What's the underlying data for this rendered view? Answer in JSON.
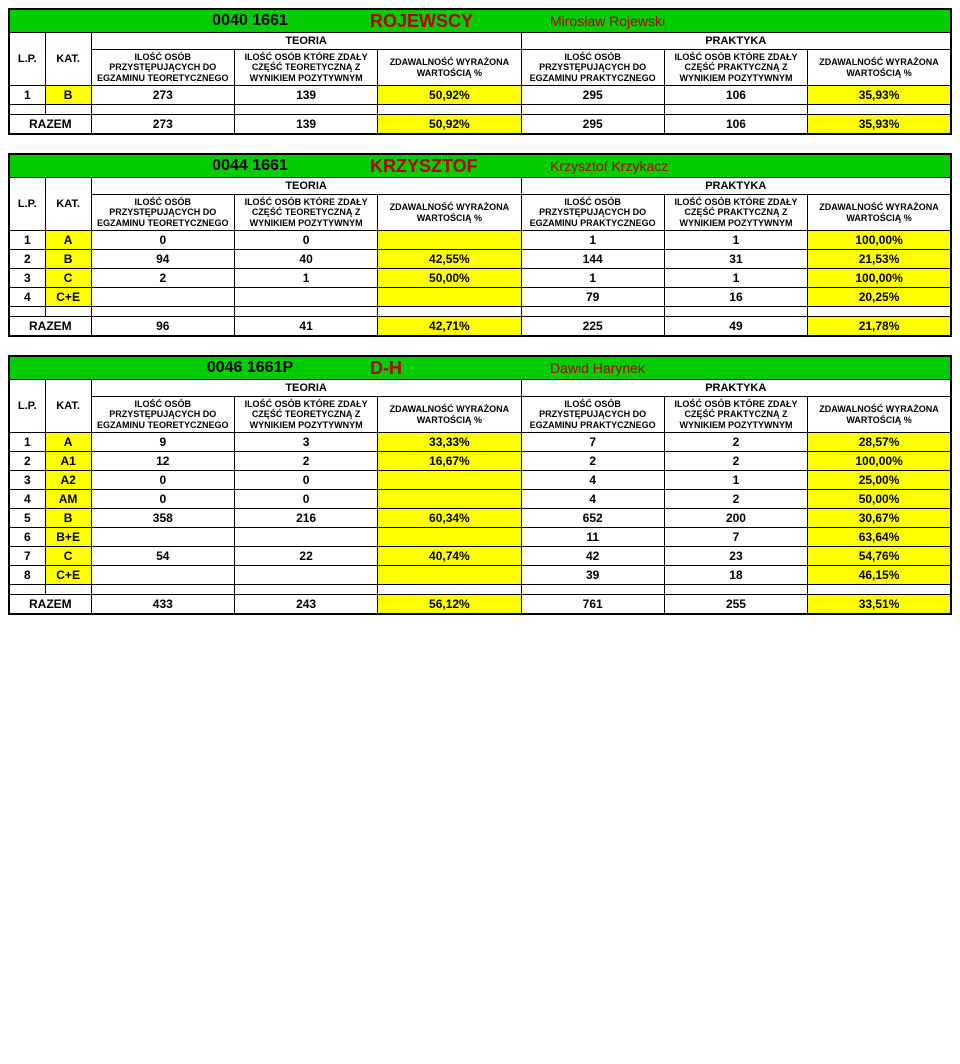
{
  "labels": {
    "teoria": "TEORIA",
    "praktyka": "PRAKTYKA",
    "lp": "L.P.",
    "kat": "KAT.",
    "col_teo_count": "ILOŚĆ OSÓB PRZYSTĘPUJĄCYCH DO EGZAMINU TEORETYCZNEGO",
    "col_teo_pass": "ILOŚĆ OSÓB KTÓRE ZDAŁY CZĘŚĆ TEORETYCZNĄ Z WYNIKIEM POZYTYWNYM",
    "col_pass_pct": "ZDAWALNOŚĆ WYRAŻONA WARTOŚCIĄ %",
    "col_pra_count": "ILOŚĆ OSÓB PRZYSTĘPUJĄCYCH DO EGZAMINU PRAKTYCZNEGO",
    "col_pra_pass": "ILOŚĆ OSÓB KTÓRE ZDAŁY CZĘŚĆ PRAKTYCZNĄ Z WYNIKIEM POZYTYWNYM",
    "razem": "RAZEM"
  },
  "colors": {
    "title_bg": "#00cc00",
    "title_text": "#b30000",
    "yellow": "#ffff00",
    "border": "#000000",
    "background": "#ffffff"
  },
  "typography": {
    "base_font": "Arial, sans-serif",
    "base_size_pt": 9,
    "title_code_size_pt": 12,
    "title_big_size_pt": 14,
    "header_sub_size_pt": 7
  },
  "blocks": [
    {
      "code": "0040 1661",
      "big": "ROJEWSCY",
      "owner": "Mirosław Rojewski",
      "rows": [
        {
          "lp": "1",
          "kat": "B",
          "teo_n": "273",
          "teo_p": "139",
          "teo_pct": "50,92%",
          "pra_n": "295",
          "pra_p": "106",
          "pra_pct": "35,93%"
        }
      ],
      "totals": {
        "teo_n": "273",
        "teo_p": "139",
        "teo_pct": "50,92%",
        "pra_n": "295",
        "pra_p": "106",
        "pra_pct": "35,93%"
      }
    },
    {
      "code": "0044 1661",
      "big": "KRZYSZTOF",
      "owner": "Krzysztof Krzykacz",
      "rows": [
        {
          "lp": "1",
          "kat": "A",
          "teo_n": "0",
          "teo_p": "0",
          "teo_pct": "",
          "pra_n": "1",
          "pra_p": "1",
          "pra_pct": "100,00%"
        },
        {
          "lp": "2",
          "kat": "B",
          "teo_n": "94",
          "teo_p": "40",
          "teo_pct": "42,55%",
          "pra_n": "144",
          "pra_p": "31",
          "pra_pct": "21,53%"
        },
        {
          "lp": "3",
          "kat": "C",
          "teo_n": "2",
          "teo_p": "1",
          "teo_pct": "50,00%",
          "pra_n": "1",
          "pra_p": "1",
          "pra_pct": "100,00%"
        },
        {
          "lp": "4",
          "kat": "C+E",
          "teo_n": "",
          "teo_p": "",
          "teo_pct": "",
          "pra_n": "79",
          "pra_p": "16",
          "pra_pct": "20,25%"
        }
      ],
      "totals": {
        "teo_n": "96",
        "teo_p": "41",
        "teo_pct": "42,71%",
        "pra_n": "225",
        "pra_p": "49",
        "pra_pct": "21,78%"
      }
    },
    {
      "code": "0046 1661P",
      "big": "D-H",
      "owner": "Dawid Harynek",
      "rows": [
        {
          "lp": "1",
          "kat": "A",
          "teo_n": "9",
          "teo_p": "3",
          "teo_pct": "33,33%",
          "pra_n": "7",
          "pra_p": "2",
          "pra_pct": "28,57%"
        },
        {
          "lp": "2",
          "kat": "A1",
          "teo_n": "12",
          "teo_p": "2",
          "teo_pct": "16,67%",
          "pra_n": "2",
          "pra_p": "2",
          "pra_pct": "100,00%"
        },
        {
          "lp": "3",
          "kat": "A2",
          "teo_n": "0",
          "teo_p": "0",
          "teo_pct": "",
          "pra_n": "4",
          "pra_p": "1",
          "pra_pct": "25,00%"
        },
        {
          "lp": "4",
          "kat": "AM",
          "teo_n": "0",
          "teo_p": "0",
          "teo_pct": "",
          "pra_n": "4",
          "pra_p": "2",
          "pra_pct": "50,00%"
        },
        {
          "lp": "5",
          "kat": "B",
          "teo_n": "358",
          "teo_p": "216",
          "teo_pct": "60,34%",
          "pra_n": "652",
          "pra_p": "200",
          "pra_pct": "30,67%"
        },
        {
          "lp": "6",
          "kat": "B+E",
          "teo_n": "",
          "teo_p": "",
          "teo_pct": "",
          "pra_n": "11",
          "pra_p": "7",
          "pra_pct": "63,64%"
        },
        {
          "lp": "7",
          "kat": "C",
          "teo_n": "54",
          "teo_p": "22",
          "teo_pct": "40,74%",
          "pra_n": "42",
          "pra_p": "23",
          "pra_pct": "54,76%"
        },
        {
          "lp": "8",
          "kat": "C+E",
          "teo_n": "",
          "teo_p": "",
          "teo_pct": "",
          "pra_n": "39",
          "pra_p": "18",
          "pra_pct": "46,15%"
        }
      ],
      "totals": {
        "teo_n": "433",
        "teo_p": "243",
        "teo_pct": "56,12%",
        "pra_n": "761",
        "pra_p": "255",
        "pra_pct": "33,51%"
      }
    }
  ]
}
